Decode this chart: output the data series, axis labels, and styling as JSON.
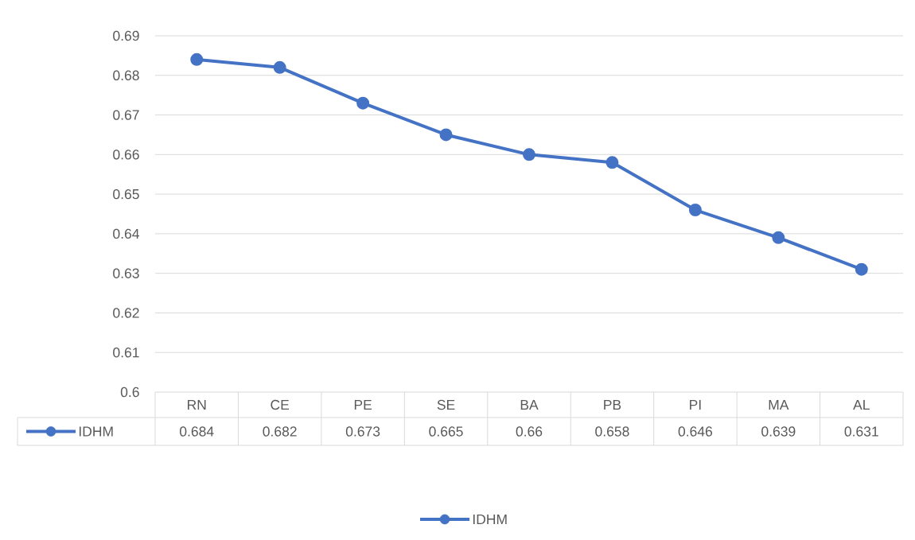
{
  "chart_data": {
    "type": "line",
    "categories": [
      "RN",
      "CE",
      "PE",
      "SE",
      "BA",
      "PB",
      "PI",
      "MA",
      "AL"
    ],
    "series": [
      {
        "name": "IDHM",
        "color": "#4472c4",
        "values": [
          0.684,
          0.682,
          0.673,
          0.665,
          0.66,
          0.658,
          0.646,
          0.639,
          0.631
        ]
      }
    ],
    "ylim": [
      0.6,
      0.69
    ],
    "yticks": [
      0.6,
      0.61,
      0.62,
      0.63,
      0.64,
      0.65,
      0.66,
      0.67,
      0.68,
      0.69
    ],
    "grid": "y",
    "marker": "circle",
    "legend": "bottom",
    "data_labels": true
  }
}
